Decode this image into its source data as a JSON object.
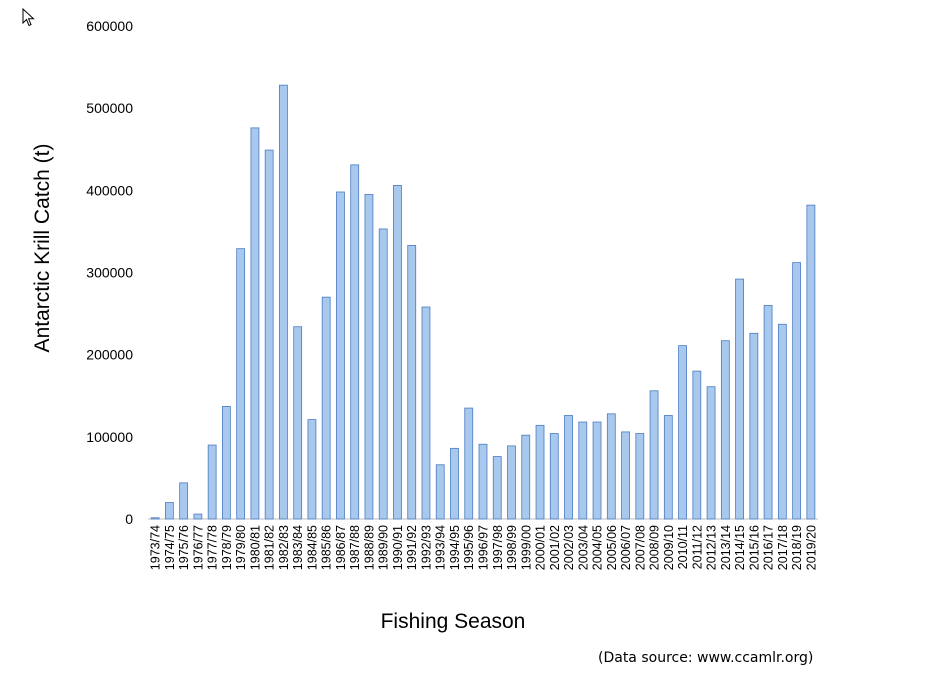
{
  "cursor_icon": "mouse-pointer-icon",
  "source_note": "(Data source: www.ccamlr.org)",
  "chart_data": {
    "type": "bar",
    "title": "",
    "xlabel": "Fishing Season",
    "ylabel": "Antarctic Krill Catch (t)",
    "ylim": [
      0,
      600000
    ],
    "yticks": [
      "0",
      "100000",
      "200000",
      "300000",
      "400000",
      "500000",
      "600000"
    ],
    "grid": false,
    "legend": "none",
    "bar_fill": "#a9c8ee",
    "bar_stroke": "#4a7cc0",
    "categories": [
      "1973/74",
      "1974/75",
      "1975/76",
      "1976/77",
      "1977/78",
      "1978/79",
      "1979/80",
      "1980/81",
      "1981/82",
      "1982/83",
      "1983/84",
      "1984/85",
      "1985/86",
      "1986/87",
      "1987/88",
      "1988/89",
      "1989/90",
      "1990/91",
      "1991/92",
      "1992/93",
      "1993/94",
      "1994/95",
      "1995/96",
      "1996/97",
      "1997/98",
      "1998/99",
      "1999/00",
      "2000/01",
      "2001/02",
      "2002/03",
      "2003/04",
      "2004/05",
      "2005/06",
      "2006/07",
      "2007/08",
      "2008/09",
      "2009/10",
      "2010/11",
      "2011/12",
      "2012/13",
      "2013/14",
      "2014/15",
      "2015/16",
      "2016/17",
      "2017/18",
      "2018/19",
      "2019/20"
    ],
    "values": [
      1500,
      20000,
      44000,
      6000,
      90000,
      137000,
      329000,
      476000,
      449000,
      528000,
      234000,
      121000,
      270000,
      398000,
      431000,
      395000,
      353000,
      406000,
      333000,
      258000,
      66000,
      86000,
      135000,
      91000,
      76000,
      89000,
      102000,
      114000,
      104000,
      126000,
      118000,
      118000,
      128000,
      106000,
      104000,
      156000,
      126000,
      211000,
      180000,
      161000,
      217000,
      292000,
      226000,
      260000,
      237000,
      312000,
      382000
    ]
  }
}
